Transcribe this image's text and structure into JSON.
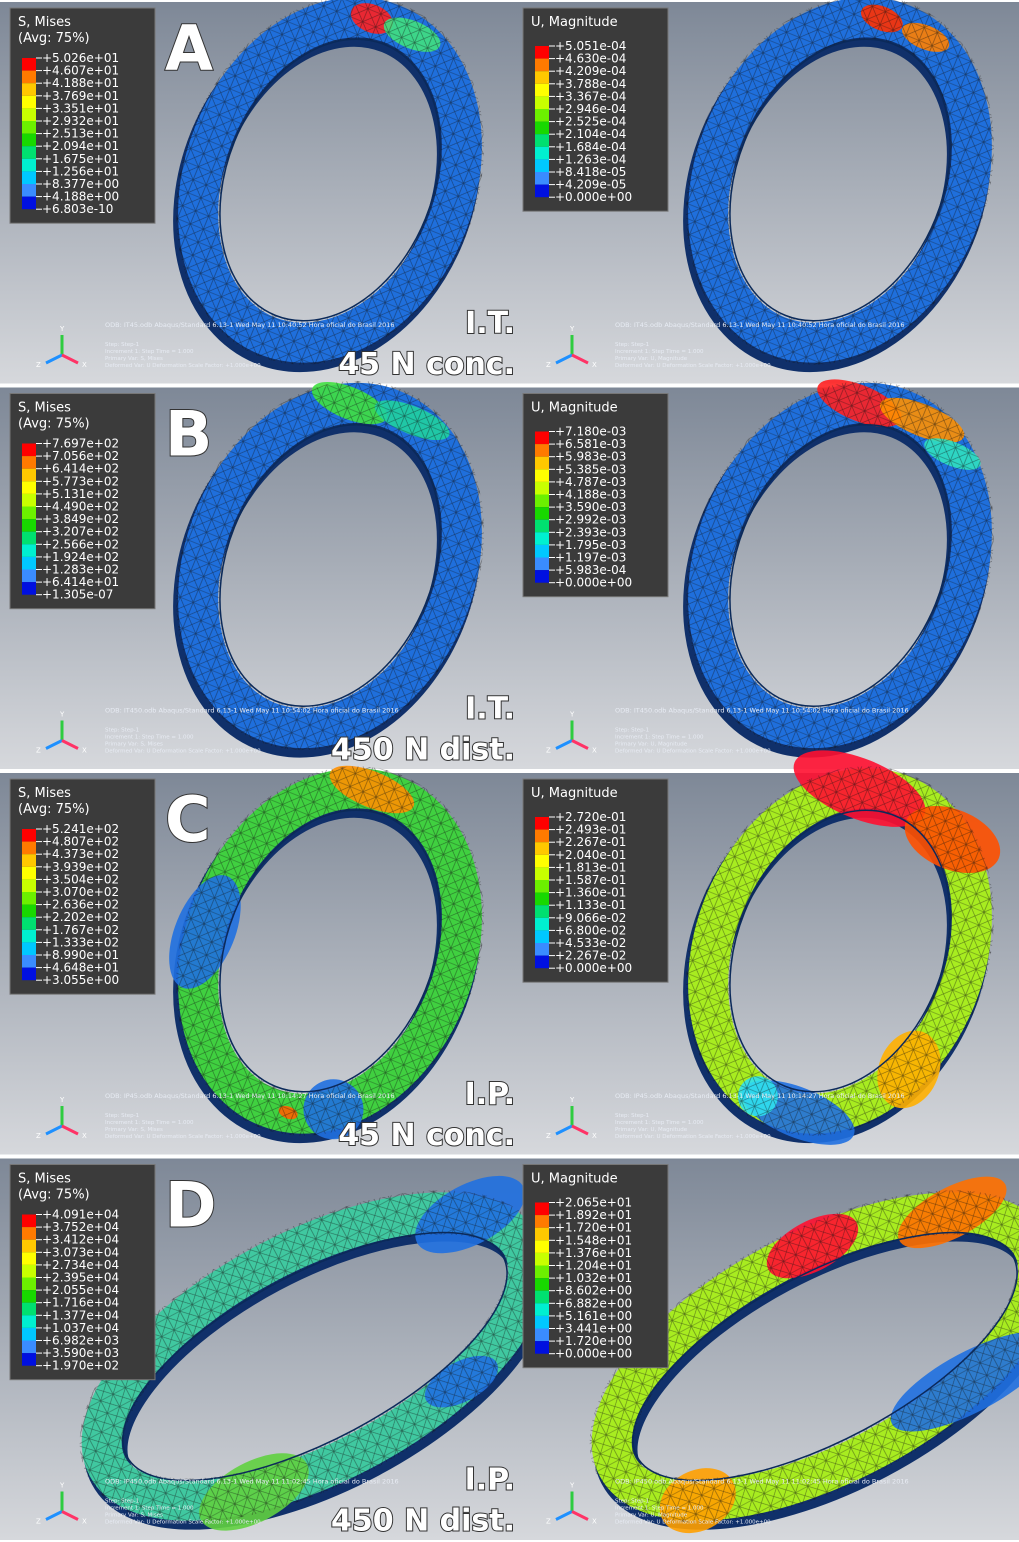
{
  "triad_labels": [
    "Y",
    "Z",
    "X"
  ],
  "rows": [
    {
      "letter": "A",
      "load_case": "I.T.",
      "load": "45 N conc.",
      "panels": [
        {
          "legend_title": "S, Mises",
          "legend_subtitle": "(Avg: 75%)",
          "legend_values": [
            "+5.026e+01",
            "+4.607e+01",
            "+4.188e+01",
            "+3.769e+01",
            "+3.351e+01",
            "+2.932e+01",
            "+2.513e+01",
            "+2.094e+01",
            "+1.675e+01",
            "+1.256e+01",
            "+8.377e+00",
            "+4.188e+00",
            "+6.803e-10"
          ],
          "odb_line": "ODB: IT45.odb    Abaqus/Standard 6.13-1    Wed May 11 10:40:52 Hora oficial do Brasil 2016",
          "step_lines": [
            "Step: Step-1",
            "Increment    1: Step Time =    1.000",
            "Primary Var: S, Mises",
            "Deformed Var: U   Deformation Scale Factor: +1.000e+00"
          ]
        },
        {
          "legend_title": "U, Magnitude",
          "legend_values": [
            "+5.051e-04",
            "+4.630e-04",
            "+4.209e-04",
            "+3.788e-04",
            "+3.367e-04",
            "+2.946e-04",
            "+2.525e-04",
            "+2.104e-04",
            "+1.684e-04",
            "+1.263e-04",
            "+8.418e-05",
            "+4.209e-05",
            "+0.000e+00"
          ],
          "odb_line": "ODB: IT45.odb    Abaqus/Standard 6.13-1    Wed May 11 10:40:52 Hora oficial do Brasil 2016",
          "step_lines": [
            "Step: Step-1",
            "Increment    1: Step Time =    1.000",
            "Primary Var: U, Magnitude",
            "Deformed Var: U   Deformation Scale Factor: +1.000e+00"
          ]
        }
      ]
    },
    {
      "letter": "B",
      "load_case": "I.T.",
      "load": "450 N dist.",
      "panels": [
        {
          "legend_title": "S, Mises",
          "legend_subtitle": "(Avg: 75%)",
          "legend_values": [
            "+7.697e+02",
            "+7.056e+02",
            "+6.414e+02",
            "+5.773e+02",
            "+5.131e+02",
            "+4.490e+02",
            "+3.849e+02",
            "+3.207e+02",
            "+2.566e+02",
            "+1.924e+02",
            "+1.283e+02",
            "+6.414e+01",
            "+1.305e-07"
          ],
          "odb_line": "ODB: IT450.odb    Abaqus/Standard 6.13-1    Wed May 11 10:54:02 Hora oficial do Brasil 2016",
          "step_lines": [
            "Step: Step-1",
            "Increment    1: Step Time =    1.000",
            "Primary Var: S, Mises",
            "Deformed Var: U   Deformation Scale Factor: +1.000e+00"
          ]
        },
        {
          "legend_title": "U, Magnitude",
          "legend_values": [
            "+7.180e-03",
            "+6.581e-03",
            "+5.983e-03",
            "+5.385e-03",
            "+4.787e-03",
            "+4.188e-03",
            "+3.590e-03",
            "+2.992e-03",
            "+2.393e-03",
            "+1.795e-03",
            "+1.197e-03",
            "+5.983e-04",
            "+0.000e+00"
          ],
          "odb_line": "ODB: IT450.odb    Abaqus/Standard 6.13-1    Wed May 11 10:54:02 Hora oficial do Brasil 2016",
          "step_lines": [
            "Step: Step-1",
            "Increment    1: Step Time =    1.000",
            "Primary Var: U, Magnitude",
            "Deformed Var: U   Deformation Scale Factor: +1.000e+00"
          ]
        }
      ]
    },
    {
      "letter": "C",
      "load_case": "I.P.",
      "load": "45 N conc.",
      "panels": [
        {
          "legend_title": "S, Mises",
          "legend_subtitle": "(Avg: 75%)",
          "legend_values": [
            "+5.241e+02",
            "+4.807e+02",
            "+4.373e+02",
            "+3.939e+02",
            "+3.504e+02",
            "+3.070e+02",
            "+2.636e+02",
            "+2.202e+02",
            "+1.767e+02",
            "+1.333e+02",
            "+8.990e+01",
            "+4.648e+01",
            "+3.055e+00"
          ],
          "odb_line": "ODB: IP45.odb    Abaqus/Standard 6.13-1    Wed May 11 10:14:27 Hora oficial do Brasil 2016",
          "step_lines": [
            "Step: Step-1",
            "Increment    1: Step Time =    1.000",
            "Primary Var: S, Mises",
            "Deformed Var: U   Deformation Scale Factor: +1.000e+00"
          ]
        },
        {
          "legend_title": "U, Magnitude",
          "legend_values": [
            "+2.720e-01",
            "+2.493e-01",
            "+2.267e-01",
            "+2.040e-01",
            "+1.813e-01",
            "+1.587e-01",
            "+1.360e-01",
            "+1.133e-01",
            "+9.066e-02",
            "+6.800e-02",
            "+4.533e-02",
            "+2.267e-02",
            "+0.000e+00"
          ],
          "odb_line": "ODB: IP45.odb    Abaqus/Standard 6.13-1    Wed May 11 10:14:27 Hora oficial do Brasil 2016",
          "step_lines": [
            "Step: Step-1",
            "Increment    1: Step Time =    1.000",
            "Primary Var: U, Magnitude",
            "Deformed Var: U   Deformation Scale Factor: +1.000e+00"
          ]
        }
      ]
    },
    {
      "letter": "D",
      "load_case": "I.P.",
      "load": "450 N dist.",
      "panels": [
        {
          "legend_title": "S, Mises",
          "legend_subtitle": "(Avg: 75%)",
          "legend_values": [
            "+4.091e+04",
            "+3.752e+04",
            "+3.412e+04",
            "+3.073e+04",
            "+2.734e+04",
            "+2.395e+04",
            "+2.055e+04",
            "+1.716e+04",
            "+1.377e+04",
            "+1.037e+04",
            "+6.982e+03",
            "+3.590e+03",
            "+1.970e+02"
          ],
          "odb_line": "ODB: IP450.odb    Abaqus/Standard 6.13-1    Wed May 11 11:02:45 Hora oficial do Brasil 2016",
          "step_lines": [
            "Step: Step-1",
            "Increment    1: Step Time =    1.000",
            "Primary Var: S, Mises",
            "Deformed Var: U   Deformation Scale Factor: +1.000e+00"
          ]
        },
        {
          "legend_title": "U, Magnitude",
          "legend_values": [
            "+2.065e+01",
            "+1.892e+01",
            "+1.720e+01",
            "+1.548e+01",
            "+1.376e+01",
            "+1.204e+01",
            "+1.032e+01",
            "+8.602e+00",
            "+6.882e+00",
            "+5.161e+00",
            "+3.441e+00",
            "+1.720e+00",
            "+0.000e+00"
          ],
          "odb_line": "ODB: IP450.odb    Abaqus/Standard 6.13-1    Wed May 11 11:02:45 Hora oficial do Brasil 2016",
          "step_lines": [
            "Step: Step-1",
            "Increment    1: Step Time =    1.000",
            "Primary Var: U, Magnitude",
            "Deformed Var: U   Deformation Scale Factor: +1.000e+00"
          ]
        }
      ]
    }
  ]
}
